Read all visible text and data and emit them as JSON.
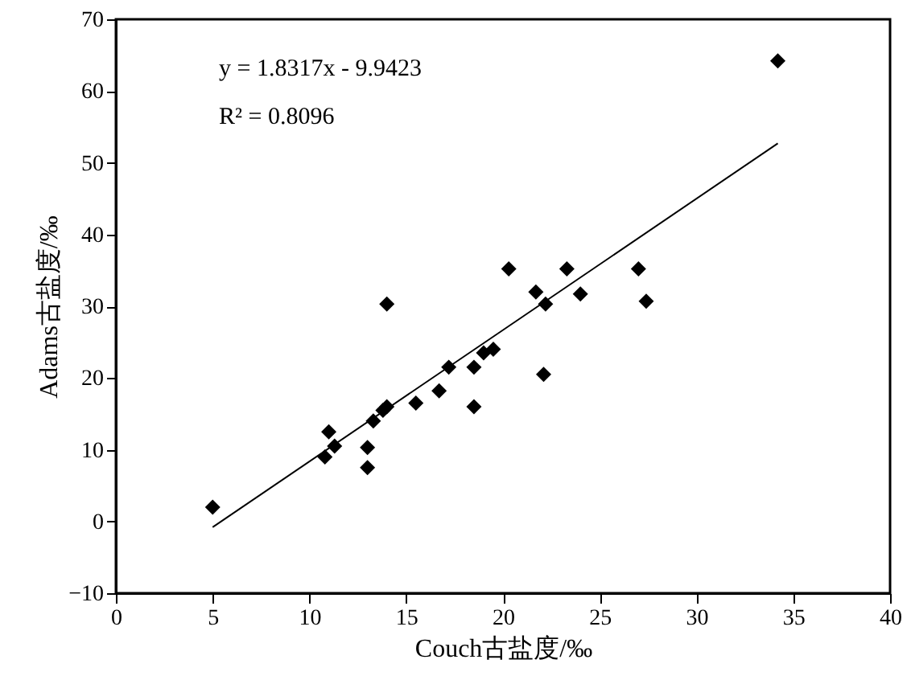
{
  "chart_data": {
    "type": "scatter",
    "xlabel": "Couch古盐度/‰",
    "ylabel": "Adams古盐度/‰",
    "xlim": [
      0,
      40
    ],
    "xticks": [
      0,
      5,
      10,
      15,
      20,
      25,
      30,
      35,
      40
    ],
    "ylim": [
      -10,
      70
    ],
    "yticks": [
      -10,
      0,
      10,
      20,
      30,
      40,
      50,
      60,
      70
    ],
    "grid": false,
    "annotations": [
      "y = 1.8317x - 9.9423",
      "R² = 0.8096"
    ],
    "series": [
      {
        "color": "#000000",
        "marker": "diamond",
        "x": [
          5.0,
          10.8,
          11.0,
          11.3,
          13.0,
          13.0,
          13.3,
          13.8,
          14.0,
          14.0,
          15.5,
          16.7,
          17.2,
          18.5,
          18.5,
          19.0,
          19.5,
          20.3,
          21.7,
          22.1,
          22.2,
          23.3,
          24.0,
          27.0,
          27.4,
          34.2
        ],
        "values": [
          2,
          9,
          12.5,
          10.5,
          10.3,
          7.5,
          14,
          15.5,
          16,
          30.3,
          16.5,
          18.2,
          21.5,
          21.5,
          16,
          23.5,
          24,
          35.2,
          32,
          20.5,
          30.3,
          35.2,
          31.7,
          35.2,
          30.7,
          64.2
        ]
      },
      {
        "type": "line",
        "color": "#000000",
        "line_style": "solid",
        "x": [
          5.0,
          34.2
        ],
        "values": [
          -0.8,
          52.7
        ]
      }
    ]
  }
}
